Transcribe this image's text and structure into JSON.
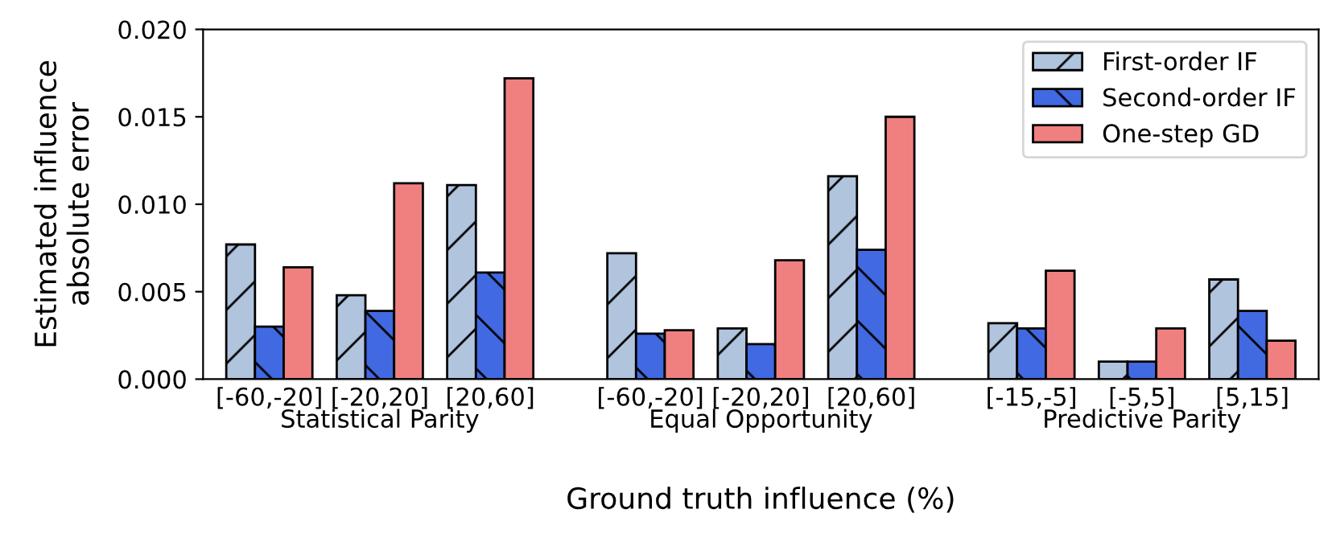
{
  "chart_data": {
    "type": "bar",
    "categories": [
      "[-60,-20]",
      "[-20,20]",
      "[20,60]",
      "[-60,-20]",
      "[-20,20]",
      "[20,60]",
      "[-15,-5]",
      "[-5,5]",
      "[5,15]"
    ],
    "series": [
      {
        "name": "First-order IF",
        "color": "#b0c4de",
        "values": [
          0.0077,
          0.0048,
          0.0111,
          0.0072,
          0.0029,
          0.0116,
          0.0032,
          0.001,
          0.0057
        ]
      },
      {
        "name": "Second-order IF",
        "color": "#4169e1",
        "values": [
          0.003,
          0.0039,
          0.0061,
          0.0026,
          0.002,
          0.0074,
          0.0029,
          0.001,
          0.0039
        ]
      },
      {
        "name": "One-step GD",
        "color": "#f08080",
        "values": [
          0.0064,
          0.0112,
          0.0172,
          0.0028,
          0.0068,
          0.015,
          0.0062,
          0.0029,
          0.0022
        ]
      }
    ],
    "annotations": [
      "Statistical Parity",
      "Equal Opportunity",
      "Predictive Parity"
    ],
    "xlabel": "Ground truth influence (%)",
    "ylabel": "Estimated influence\nabsolute error",
    "ylim": [
      0,
      0.02
    ],
    "yticks": [
      {
        "value": 0,
        "label": "0.000"
      },
      {
        "value": 0.005,
        "label": "0.005"
      },
      {
        "value": 0.01,
        "label": "0.010"
      },
      {
        "value": 0.015,
        "label": "0.015"
      },
      {
        "value": 0.02,
        "label": "0.020"
      }
    ],
    "legend": "top right"
  }
}
